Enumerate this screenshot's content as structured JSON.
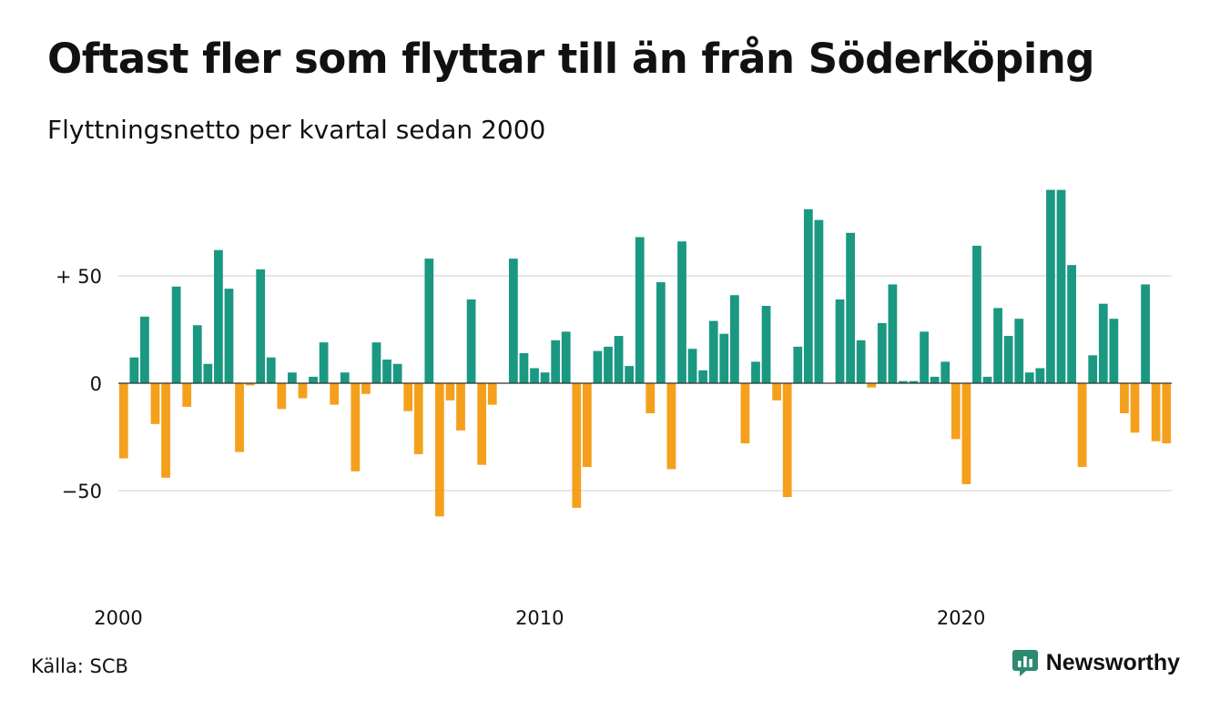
{
  "title": "Oftast fler som flyttar till än från Söderköping",
  "subtitle": "Flyttningsnetto per kvartal sedan 2000",
  "source": "Källa: SCB",
  "brand": {
    "name": "Newsworthy",
    "icon": "newsworthy-logo-icon"
  },
  "colors": {
    "positive": "#1a9882",
    "negative": "#f5a01c",
    "brand": "#2b8a6f",
    "grid": "#dddddd"
  },
  "chart_data": {
    "type": "bar",
    "x_start": "2000 Q1",
    "ylim": [
      -75,
      90
    ],
    "y_ticks": [
      {
        "value": 50,
        "label": "+ 50"
      },
      {
        "value": 0,
        "label": "0"
      },
      {
        "value": -50,
        "label": "−50"
      }
    ],
    "x_ticks": [
      {
        "index": 0,
        "label": "2000"
      },
      {
        "index": 40,
        "label": "2010"
      },
      {
        "index": 80,
        "label": "2020"
      }
    ],
    "grid": true,
    "values": [
      -35,
      12,
      31,
      -19,
      -44,
      45,
      -11,
      27,
      9,
      62,
      44,
      -32,
      -1,
      53,
      12,
      -12,
      5,
      -7,
      3,
      19,
      -10,
      5,
      -41,
      -5,
      19,
      11,
      9,
      -13,
      -33,
      58,
      -62,
      -8,
      -22,
      39,
      -38,
      -10,
      0,
      58,
      14,
      7,
      5,
      20,
      24,
      -58,
      -39,
      15,
      17,
      22,
      8,
      68,
      -14,
      47,
      -40,
      66,
      16,
      6,
      29,
      23,
      41,
      -28,
      10,
      36,
      -8,
      -53,
      17,
      81,
      76,
      0,
      39,
      70,
      20,
      -2,
      28,
      46,
      1,
      1,
      24,
      3,
      10,
      -26,
      -47,
      64,
      3,
      35,
      22,
      30,
      5,
      7,
      90,
      90,
      55,
      -39,
      13,
      37,
      30,
      -14,
      -23,
      46,
      -27,
      -28
    ]
  }
}
